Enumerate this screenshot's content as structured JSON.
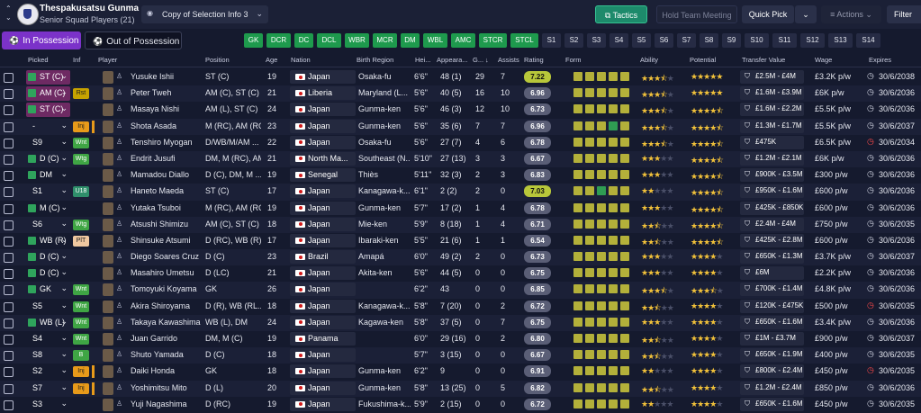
{
  "club": {
    "name": "Thespakusatsu Gunma",
    "subtitle": "Senior Squad Players (21)"
  },
  "view": {
    "label": "Copy of Selection Info 3"
  },
  "toolbar": {
    "tactics": "Tactics",
    "hold_meeting": "Hold Team Meeting",
    "quick_pick": "Quick Pick",
    "actions": "Actions",
    "filter": "Filter"
  },
  "tabs": {
    "in_possession": "In Possession",
    "out_possession": "Out of Possession"
  },
  "positions": [
    {
      "label": "GK",
      "on": true
    },
    {
      "label": "DCR",
      "on": true
    },
    {
      "label": "DC",
      "on": true
    },
    {
      "label": "DCL",
      "on": true
    },
    {
      "label": "WBR",
      "on": true
    },
    {
      "label": "MCR",
      "on": true
    },
    {
      "label": "DM",
      "on": true
    },
    {
      "label": "WBL",
      "on": true
    },
    {
      "label": "AMC",
      "on": true
    },
    {
      "label": "STCR",
      "on": true
    },
    {
      "label": "STCL",
      "on": true
    },
    {
      "label": "S1",
      "on": false
    },
    {
      "label": "S2",
      "on": false
    },
    {
      "label": "S3",
      "on": false
    },
    {
      "label": "S4",
      "on": false
    },
    {
      "label": "S5",
      "on": false
    },
    {
      "label": "S6",
      "on": false
    },
    {
      "label": "S7",
      "on": false
    },
    {
      "label": "S8",
      "on": false
    },
    {
      "label": "S9",
      "on": false
    },
    {
      "label": "S10",
      "on": false
    },
    {
      "label": "S11",
      "on": false
    },
    {
      "label": "S12",
      "on": false
    },
    {
      "label": "S13",
      "on": false
    },
    {
      "label": "S14",
      "on": false
    }
  ],
  "columns": {
    "picked": "Picked",
    "inf": "Inf",
    "player": "Player",
    "position": "Position",
    "age": "Age",
    "nation": "Nation",
    "birth_region": "Birth Region",
    "height": "Hei...",
    "appearances": "Appeara...",
    "goals": "G...",
    "assists": "Assists",
    "rating": "Rating",
    "form": "Form",
    "ability": "Ability",
    "potential": "Potential",
    "transfer_value": "Transfer Value",
    "wage": "Wage",
    "expires": "Expires"
  },
  "players": [
    {
      "picked": "ST (C)",
      "sel": true,
      "icon": true,
      "inf": "",
      "name": "Yusuke Ishii",
      "position": "ST (C)",
      "age": "19",
      "nation": "Japan",
      "region": "Osaka-fu",
      "height": "6'6\"",
      "apps": "48 (1)",
      "goals": "29",
      "assists": "7",
      "rating": "7.22",
      "hi": true,
      "form": [
        "y",
        "y",
        "y",
        "y",
        "y"
      ],
      "ability": 3.5,
      "potential": 5,
      "value": "£2.5M - £4M",
      "wage": "£3.2K p/w",
      "expires": "30/6/2038",
      "red": false
    },
    {
      "picked": "AM (C)",
      "sel": true,
      "icon": true,
      "inf": "Rst",
      "name": "Peter Tweh",
      "position": "AM (C), ST (C)",
      "age": "21",
      "nation": "Liberia",
      "region": "Maryland (L...",
      "height": "5'6\"",
      "apps": "40 (5)",
      "goals": "16",
      "assists": "10",
      "rating": "6.96",
      "hi": false,
      "form": [
        "y",
        "y",
        "y",
        "y",
        "y"
      ],
      "ability": 3.5,
      "potential": 5,
      "value": "£1.6M - £3.9M",
      "wage": "£6K p/w",
      "expires": "30/6/2036",
      "red": false
    },
    {
      "picked": "ST (C)",
      "sel": true,
      "icon": true,
      "inf": "",
      "name": "Masaya Nishi",
      "position": "AM (L), ST (C)",
      "age": "24",
      "nation": "Japan",
      "region": "Gunma-ken",
      "height": "5'6\"",
      "apps": "46 (3)",
      "goals": "12",
      "assists": "10",
      "rating": "6.73",
      "hi": false,
      "form": [
        "y",
        "y",
        "y",
        "y",
        "y"
      ],
      "ability": 3.5,
      "potential": 4.5,
      "value": "£1.6M - £2.2M",
      "wage": "£5.5K p/w",
      "expires": "30/6/2036",
      "red": false
    },
    {
      "picked": "-",
      "sel": false,
      "icon": false,
      "inf": "Inj",
      "name": "Shota Asada",
      "position": "M (RC), AM (RC)",
      "age": "23",
      "nation": "Japan",
      "region": "Gunma-ken",
      "height": "5'6\"",
      "apps": "35 (6)",
      "goals": "7",
      "assists": "7",
      "rating": "6.96",
      "hi": false,
      "form": [
        "y",
        "y",
        "y",
        "g",
        "y"
      ],
      "ability": 3.5,
      "potential": 4.5,
      "value": "£1.3M - £1.7M",
      "wage": "£5.5K p/w",
      "expires": "30/6/2037",
      "red": false
    },
    {
      "picked": "S9",
      "sel": false,
      "icon": false,
      "inf": "Wnt",
      "name": "Tenshiro Myogan",
      "position": "D/WB/M/AM ...",
      "age": "22",
      "nation": "Japan",
      "region": "Osaka-fu",
      "height": "5'6\"",
      "apps": "27 (7)",
      "goals": "4",
      "assists": "6",
      "rating": "6.78",
      "hi": false,
      "form": [
        "y",
        "y",
        "y",
        "y",
        "y"
      ],
      "ability": 3.5,
      "potential": 4.5,
      "value": "£475K",
      "wage": "£6.5K p/w",
      "expires": "30/6/2034",
      "red": true
    },
    {
      "picked": "D (C)",
      "sel": false,
      "icon": true,
      "inf": "Wtg",
      "name": "Endrit Jusufi",
      "position": "DM, M (RC), AM ...",
      "age": "21",
      "nation": "North Ma...",
      "region": "Southeast (N...",
      "height": "5'10\"",
      "apps": "27 (13)",
      "goals": "3",
      "assists": "3",
      "rating": "6.67",
      "hi": false,
      "form": [
        "y",
        "y",
        "y",
        "y",
        "y"
      ],
      "ability": 3,
      "potential": 4.5,
      "value": "£1.2M - £2.1M",
      "wage": "£6K p/w",
      "expires": "30/6/2036",
      "red": false
    },
    {
      "picked": "DM",
      "sel": false,
      "icon": true,
      "inf": "",
      "name": "Mamadou Diallo",
      "position": "D (C), DM, M ...",
      "age": "19",
      "nation": "Senegal",
      "region": "Thiès",
      "height": "5'11\"",
      "apps": "32 (3)",
      "goals": "2",
      "assists": "3",
      "rating": "6.83",
      "hi": false,
      "form": [
        "y",
        "y",
        "y",
        "y",
        "y"
      ],
      "ability": 3,
      "potential": 4.5,
      "value": "£900K - £3.5M",
      "wage": "£300 p/w",
      "expires": "30/6/2036",
      "red": false
    },
    {
      "picked": "S1",
      "sel": false,
      "icon": false,
      "inf": "U18",
      "name": "Haneto Maeda",
      "position": "ST (C)",
      "age": "17",
      "nation": "Japan",
      "region": "Kanagawa-k...",
      "height": "6'1\"",
      "apps": "2 (2)",
      "goals": "2",
      "assists": "0",
      "rating": "7.03",
      "hi": true,
      "form": [
        "y",
        "y",
        "g",
        "y",
        "y"
      ],
      "ability": 2,
      "potential": 4.5,
      "value": "£950K - £1.6M",
      "wage": "£600 p/w",
      "expires": "30/6/2036",
      "red": false
    },
    {
      "picked": "M (C)",
      "sel": false,
      "icon": true,
      "inf": "",
      "name": "Yutaka Tsuboi",
      "position": "M (RC), AM (RC)",
      "age": "19",
      "nation": "Japan",
      "region": "Gunma-ken",
      "height": "5'7\"",
      "apps": "17 (2)",
      "goals": "1",
      "assists": "4",
      "rating": "6.78",
      "hi": false,
      "form": [
        "y",
        "y",
        "y",
        "y",
        "y"
      ],
      "ability": 3,
      "potential": 4.5,
      "value": "£425K - £850K",
      "wage": "£600 p/w",
      "expires": "30/6/2036",
      "red": false
    },
    {
      "picked": "S6",
      "sel": false,
      "icon": false,
      "inf": "Wtg",
      "name": "Atsushi Shimizu",
      "position": "AM (C), ST (C)",
      "age": "18",
      "nation": "Japan",
      "region": "Mie-ken",
      "height": "5'9\"",
      "apps": "8 (18)",
      "goals": "1",
      "assists": "4",
      "rating": "6.71",
      "hi": false,
      "form": [
        "y",
        "y",
        "y",
        "y",
        "y"
      ],
      "ability": 2.5,
      "potential": 4.5,
      "value": "£2.4M - £4M",
      "wage": "£750 p/w",
      "expires": "30/6/2035",
      "red": false
    },
    {
      "picked": "WB (R)",
      "sel": false,
      "icon": true,
      "inf": "PlT",
      "name": "Shinsuke Atsumi",
      "position": "D (RC), WB (R)",
      "age": "17",
      "nation": "Japan",
      "region": "Ibaraki-ken",
      "height": "5'5\"",
      "apps": "21 (6)",
      "goals": "1",
      "assists": "1",
      "rating": "6.54",
      "hi": false,
      "form": [
        "y",
        "y",
        "y",
        "y",
        "y"
      ],
      "ability": 2.5,
      "potential": 4.5,
      "value": "£425K - £2.8M",
      "wage": "£600 p/w",
      "expires": "30/6/2036",
      "red": false
    },
    {
      "picked": "D (C)",
      "sel": false,
      "icon": true,
      "inf": "",
      "name": "Diego Soares Cruz",
      "position": "D (C)",
      "age": "23",
      "nation": "Brazil",
      "region": "Amapá",
      "height": "6'0\"",
      "apps": "49 (2)",
      "goals": "2",
      "assists": "0",
      "rating": "6.73",
      "hi": false,
      "form": [
        "y",
        "y",
        "y",
        "y",
        "y"
      ],
      "ability": 3,
      "potential": 4,
      "value": "£650K - £1.3M",
      "wage": "£3.7K p/w",
      "expires": "30/6/2037",
      "red": false
    },
    {
      "picked": "D (C)",
      "sel": false,
      "icon": true,
      "inf": "",
      "name": "Masahiro Umetsu",
      "position": "D (LC)",
      "age": "21",
      "nation": "Japan",
      "region": "Akita-ken",
      "height": "5'6\"",
      "apps": "44 (5)",
      "goals": "0",
      "assists": "0",
      "rating": "6.75",
      "hi": false,
      "form": [
        "y",
        "y",
        "y",
        "y",
        "y"
      ],
      "ability": 3,
      "potential": 4,
      "value": "£6M",
      "wage": "£2.2K p/w",
      "expires": "30/6/2036",
      "red": false
    },
    {
      "picked": "GK",
      "sel": false,
      "icon": true,
      "inf": "Wnt",
      "name": "Tomoyuki Koyama",
      "position": "GK",
      "age": "26",
      "nation": "Japan",
      "region": "",
      "height": "6'2\"",
      "apps": "43",
      "goals": "0",
      "assists": "0",
      "rating": "6.85",
      "hi": false,
      "form": [
        "y",
        "y",
        "y",
        "y",
        "y"
      ],
      "ability": 3.5,
      "potential": 3.5,
      "value": "£700K - £1.4M",
      "wage": "£4.8K p/w",
      "expires": "30/6/2036",
      "red": false
    },
    {
      "picked": "S5",
      "sel": false,
      "icon": false,
      "inf": "Wnt",
      "name": "Akira Shiroyama",
      "position": "D (R), WB (RL...",
      "age": "18",
      "nation": "Japan",
      "region": "Kanagawa-k...",
      "height": "5'8\"",
      "apps": "7 (20)",
      "goals": "0",
      "assists": "2",
      "rating": "6.72",
      "hi": false,
      "form": [
        "y",
        "y",
        "y",
        "y",
        "y"
      ],
      "ability": 2.5,
      "potential": 4,
      "value": "£120K - £475K",
      "wage": "£500 p/w",
      "expires": "30/6/2035",
      "red": true
    },
    {
      "picked": "WB (L)",
      "sel": false,
      "icon": true,
      "inf": "Wnt",
      "name": "Takaya Kawashima",
      "position": "WB (L), DM",
      "age": "24",
      "nation": "Japan",
      "region": "Kagawa-ken",
      "height": "5'8\"",
      "apps": "37 (5)",
      "goals": "0",
      "assists": "7",
      "rating": "6.75",
      "hi": false,
      "form": [
        "y",
        "y",
        "y",
        "y",
        "y"
      ],
      "ability": 3,
      "potential": 4,
      "value": "£650K - £1.6M",
      "wage": "£3.4K p/w",
      "expires": "30/6/2036",
      "red": false
    },
    {
      "picked": "S4",
      "sel": false,
      "icon": false,
      "inf": "Wnt",
      "name": "Juan Garrido",
      "position": "DM, M (C)",
      "age": "19",
      "nation": "Panama",
      "region": "",
      "height": "6'0\"",
      "apps": "29 (16)",
      "goals": "0",
      "assists": "2",
      "rating": "6.80",
      "hi": false,
      "form": [
        "y",
        "y",
        "y",
        "y",
        "y"
      ],
      "ability": 2.5,
      "potential": 4,
      "value": "£1M - £3.7M",
      "wage": "£900 p/w",
      "expires": "30/6/2037",
      "red": false
    },
    {
      "picked": "S8",
      "sel": false,
      "icon": false,
      "inf": "B",
      "name": "Shuto Yamada",
      "position": "D (C)",
      "age": "18",
      "nation": "Japan",
      "region": "",
      "height": "5'7\"",
      "apps": "3 (15)",
      "goals": "0",
      "assists": "0",
      "rating": "6.67",
      "hi": false,
      "form": [
        "y",
        "y",
        "y",
        "y",
        "y"
      ],
      "ability": 2.5,
      "potential": 4,
      "value": "£650K - £1.9M",
      "wage": "£400 p/w",
      "expires": "30/6/2035",
      "red": false
    },
    {
      "picked": "S2",
      "sel": false,
      "icon": false,
      "inf": "Inj",
      "name": "Daiki Honda",
      "position": "GK",
      "age": "18",
      "nation": "Japan",
      "region": "Gunma-ken",
      "height": "6'2\"",
      "apps": "9",
      "goals": "0",
      "assists": "0",
      "rating": "6.91",
      "hi": false,
      "form": [
        "y",
        "y",
        "y",
        "y",
        "y"
      ],
      "ability": 2,
      "potential": 4,
      "value": "£800K - £2.4M",
      "wage": "£450 p/w",
      "expires": "30/6/2035",
      "red": true
    },
    {
      "picked": "S7",
      "sel": false,
      "icon": false,
      "inf": "Inj",
      "name": "Yoshimitsu Mito",
      "position": "D (L)",
      "age": "20",
      "nation": "Japan",
      "region": "Gunma-ken",
      "height": "5'8\"",
      "apps": "13 (25)",
      "goals": "0",
      "assists": "5",
      "rating": "6.82",
      "hi": false,
      "form": [
        "y",
        "y",
        "y",
        "y",
        "y"
      ],
      "ability": 2.5,
      "potential": 4,
      "value": "£1.2M - £2.4M",
      "wage": "£850 p/w",
      "expires": "30/6/2036",
      "red": false
    },
    {
      "picked": "S3",
      "sel": false,
      "icon": false,
      "inf": "",
      "name": "Yuji Nagashima",
      "position": "D (RC)",
      "age": "19",
      "nation": "Japan",
      "region": "Fukushima-k...",
      "height": "5'9\"",
      "apps": "2 (15)",
      "goals": "0",
      "assists": "0",
      "rating": "6.72",
      "hi": false,
      "form": [
        "y",
        "y",
        "y",
        "y",
        "y"
      ],
      "ability": 2,
      "potential": 4,
      "value": "£650K - £1.6M",
      "wage": "£450 p/w",
      "expires": "30/6/2035",
      "red": false
    }
  ]
}
